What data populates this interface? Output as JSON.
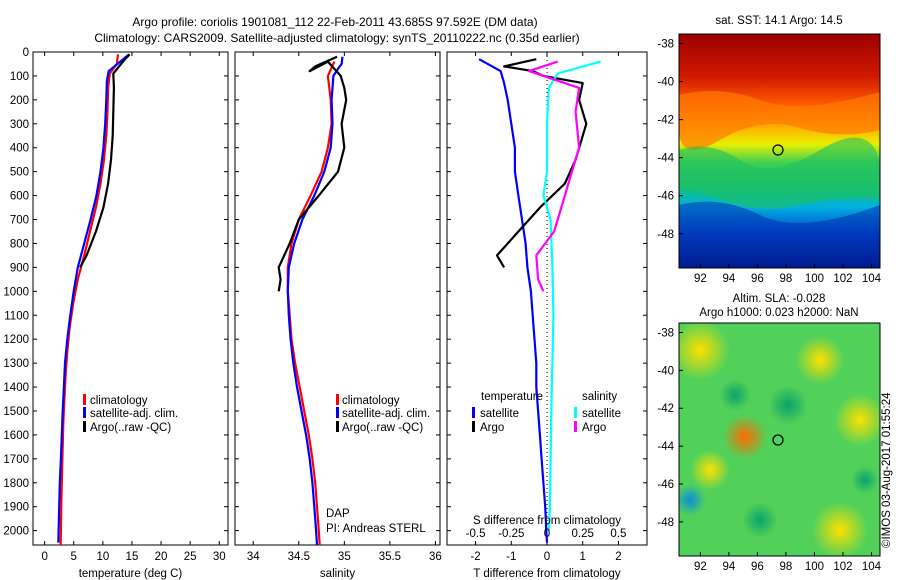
{
  "header": {
    "line1": "Argo profile: coriolis 1901081_112 22-Feb-2011 43.685S 97.592E (DM data)",
    "line2": "Climatology: CARS2009. Satellite-adjusted climatology: synTS_20110222.nc (0.35d earlier)"
  },
  "colors": {
    "climatology": "#ff0000",
    "satellite": "#0000ff",
    "argo": "#000000",
    "sat_salinity": "#00ffff",
    "argo_salinity": "#ff00ff"
  },
  "depth_ticks": [
    "0",
    "100",
    "200",
    "300",
    "400",
    "500",
    "600",
    "700",
    "800",
    "900",
    "1000",
    "1100",
    "1200",
    "1300",
    "1400",
    "1500",
    "1600",
    "1700",
    "1800",
    "1900",
    "2000"
  ],
  "chart_data": [
    {
      "type": "line",
      "xlabel": "temperature (deg C)",
      "ylabel": "",
      "xlim": [
        -2,
        31.5
      ],
      "ylim": [
        2060,
        0
      ],
      "xticks": [
        "0",
        "5",
        "10",
        "15",
        "20",
        "25",
        "30"
      ],
      "legend": {
        "placement": "lower-left",
        "entries": [
          "climatology",
          "satellite-adj. clim.",
          "Argo(..raw -QC)"
        ]
      },
      "series": [
        {
          "name": "climatology",
          "color": "#ff0000",
          "points": [
            [
              12.6,
              10
            ],
            [
              12.4,
              50
            ],
            [
              11.2,
              90
            ],
            [
              10.9,
              150
            ],
            [
              10.8,
              250
            ],
            [
              10.6,
              350
            ],
            [
              10.2,
              450
            ],
            [
              9.6,
              550
            ],
            [
              8.8,
              650
            ],
            [
              7.8,
              750
            ],
            [
              6.8,
              850
            ],
            [
              5.7,
              950
            ],
            [
              4.9,
              1050
            ],
            [
              4.3,
              1150
            ],
            [
              3.9,
              1250
            ],
            [
              3.6,
              1350
            ],
            [
              3.4,
              1450
            ],
            [
              3.2,
              1550
            ],
            [
              3.05,
              1700
            ],
            [
              2.9,
              1850
            ],
            [
              2.8,
              2000
            ],
            [
              2.75,
              2060
            ]
          ]
        },
        {
          "name": "satellite-adj. clim.",
          "color": "#0000ff",
          "points": [
            [
              14.5,
              10
            ],
            [
              13.0,
              40
            ],
            [
              11.0,
              80
            ],
            [
              10.7,
              120
            ],
            [
              10.6,
              200
            ],
            [
              10.4,
              300
            ],
            [
              10.1,
              400
            ],
            [
              9.6,
              500
            ],
            [
              8.9,
              600
            ],
            [
              7.9,
              700
            ],
            [
              6.8,
              800
            ],
            [
              5.7,
              900
            ],
            [
              5.0,
              1000
            ],
            [
              4.4,
              1100
            ],
            [
              3.9,
              1200
            ],
            [
              3.5,
              1300
            ],
            [
              3.3,
              1400
            ],
            [
              3.1,
              1500
            ],
            [
              2.95,
              1600
            ],
            [
              2.8,
              1700
            ],
            [
              2.6,
              1800
            ],
            [
              2.5,
              1900
            ],
            [
              2.4,
              2000
            ],
            [
              2.35,
              2050
            ]
          ]
        },
        {
          "name": "Argo(..raw -QC)",
          "color": "#000000",
          "points": [
            [
              14.6,
              10
            ],
            [
              13.8,
              30
            ],
            [
              12.8,
              60
            ],
            [
              11.8,
              90
            ],
            [
              11.9,
              150
            ],
            [
              11.8,
              250
            ],
            [
              11.7,
              350
            ],
            [
              11.4,
              450
            ],
            [
              10.9,
              550
            ],
            [
              10.1,
              650
            ],
            [
              8.8,
              750
            ],
            [
              7.2,
              850
            ],
            [
              6.1,
              900
            ]
          ]
        }
      ],
      "annotation": []
    },
    {
      "type": "line",
      "xlabel": "salinity",
      "ylabel": "",
      "xlim": [
        33.8,
        36.05
      ],
      "ylim": [
        2060,
        0
      ],
      "xticks": [
        "34",
        "34.5",
        "35",
        "35.5",
        "36"
      ],
      "legend": {
        "placement": "lower-right",
        "entries": [
          "climatology",
          "satellite-adj. clim.",
          "Argo(..raw -QC)"
        ]
      },
      "series": [
        {
          "name": "climatology",
          "color": "#ff0000",
          "points": [
            [
              34.89,
              40
            ],
            [
              34.82,
              100
            ],
            [
              34.85,
              200
            ],
            [
              34.86,
              300
            ],
            [
              34.82,
              400
            ],
            [
              34.75,
              500
            ],
            [
              34.63,
              600
            ],
            [
              34.5,
              700
            ],
            [
              34.42,
              800
            ],
            [
              34.38,
              900
            ],
            [
              34.38,
              1000
            ],
            [
              34.4,
              1100
            ],
            [
              34.42,
              1200
            ],
            [
              34.46,
              1300
            ],
            [
              34.51,
              1400
            ],
            [
              34.56,
              1500
            ],
            [
              34.61,
              1600
            ],
            [
              34.65,
              1700
            ],
            [
              34.68,
              1800
            ],
            [
              34.7,
              1900
            ],
            [
              34.72,
              2000
            ],
            [
              34.73,
              2060
            ]
          ]
        },
        {
          "name": "satellite-adj. clim.",
          "color": "#0000ff",
          "points": [
            [
              34.98,
              20
            ],
            [
              34.97,
              50
            ],
            [
              34.93,
              70
            ],
            [
              34.88,
              100
            ],
            [
              34.86,
              200
            ],
            [
              34.87,
              300
            ],
            [
              34.85,
              400
            ],
            [
              34.78,
              500
            ],
            [
              34.67,
              600
            ],
            [
              34.54,
              700
            ],
            [
              34.45,
              800
            ],
            [
              34.39,
              900
            ],
            [
              34.38,
              1000
            ],
            [
              34.39,
              1100
            ],
            [
              34.41,
              1200
            ],
            [
              34.44,
              1300
            ],
            [
              34.48,
              1400
            ],
            [
              34.53,
              1500
            ],
            [
              34.58,
              1600
            ],
            [
              34.62,
              1700
            ],
            [
              34.65,
              1800
            ],
            [
              34.67,
              1900
            ],
            [
              34.69,
              2000
            ],
            [
              34.7,
              2060
            ]
          ]
        },
        {
          "name": "Argo(..raw -QC)",
          "color": "#000000",
          "points": [
            [
              34.92,
              20
            ],
            [
              34.68,
              60
            ],
            [
              34.62,
              80
            ],
            [
              34.82,
              40
            ],
            [
              34.96,
              100
            ],
            [
              35.0,
              150
            ],
            [
              35.02,
              200
            ],
            [
              34.97,
              300
            ],
            [
              35.0,
              400
            ],
            [
              34.93,
              500
            ],
            [
              34.72,
              600
            ],
            [
              34.5,
              700
            ],
            [
              34.4,
              800
            ],
            [
              34.28,
              900
            ],
            [
              34.3,
              950
            ],
            [
              34.28,
              1000
            ]
          ]
        }
      ],
      "annotation": [
        "DAP",
        "PI: Andreas STERL"
      ]
    },
    {
      "type": "line",
      "xlabel": "T difference from climatology",
      "xlabel_top": "S difference from climatology",
      "xlim": [
        -2.8,
        2.8
      ],
      "ylim": [
        2060,
        0
      ],
      "xticks": [
        "-2",
        "-1",
        "0",
        "1",
        "2"
      ],
      "sticks": [
        "-0.5",
        "-0.25",
        "0",
        "0.25",
        "0.5"
      ],
      "legend": {
        "placement": "center",
        "groups": [
          "temperature",
          "salinity"
        ],
        "entries": [
          "satellite",
          "Argo",
          "satellite",
          "Argo"
        ]
      },
      "series": [
        {
          "name": "satellite",
          "group": "temperature",
          "color": "#0000ff",
          "points": [
            [
              -1.9,
              30
            ],
            [
              -1.3,
              80
            ],
            [
              -1.2,
              130
            ],
            [
              -1.1,
              200
            ],
            [
              -1.0,
              300
            ],
            [
              -0.9,
              400
            ],
            [
              -0.9,
              500
            ],
            [
              -0.8,
              600
            ],
            [
              -0.7,
              700
            ],
            [
              -0.6,
              800
            ],
            [
              -0.55,
              900
            ],
            [
              -0.45,
              1000
            ],
            [
              -0.4,
              1100
            ],
            [
              -0.35,
              1200
            ],
            [
              -0.3,
              1300
            ],
            [
              -0.3,
              1400
            ],
            [
              -0.25,
              1500
            ],
            [
              -0.2,
              1600
            ],
            [
              -0.15,
              1700
            ],
            [
              -0.1,
              1800
            ],
            [
              -0.05,
              1900
            ],
            [
              -0.02,
              2000
            ],
            [
              0,
              2050
            ]
          ]
        },
        {
          "name": "Argo",
          "group": "temperature",
          "color": "#000000",
          "points": [
            [
              -0.3,
              30
            ],
            [
              -1.2,
              60
            ],
            [
              -0.4,
              80
            ],
            [
              -0.1,
              100
            ],
            [
              1.0,
              130
            ],
            [
              0.9,
              200
            ],
            [
              1.1,
              300
            ],
            [
              0.8,
              450
            ],
            [
              0.5,
              550
            ],
            [
              -0.2,
              650
            ],
            [
              -0.8,
              750
            ],
            [
              -1.4,
              850
            ],
            [
              -1.2,
              900
            ]
          ]
        },
        {
          "name": "satellite",
          "group": "salinity",
          "color": "#00ffff",
          "points": [
            [
              1.5,
              40
            ],
            [
              0.3,
              90
            ],
            [
              0.05,
              150
            ],
            [
              0.0,
              300
            ],
            [
              0.0,
              500
            ],
            [
              -0.1,
              600
            ],
            [
              0.1,
              700
            ],
            [
              0.15,
              900
            ],
            [
              0.18,
              1100
            ],
            [
              0.15,
              1300
            ],
            [
              0.12,
              1500
            ],
            [
              0.1,
              1700
            ],
            [
              0.08,
              1900
            ],
            [
              0.05,
              2000
            ]
          ]
        },
        {
          "name": "Argo",
          "group": "salinity",
          "color": "#ff00ff",
          "points": [
            [
              0.3,
              40
            ],
            [
              -0.5,
              80
            ],
            [
              0.9,
              150
            ],
            [
              0.8,
              250
            ],
            [
              0.9,
              400
            ],
            [
              0.6,
              550
            ],
            [
              0.4,
              650
            ],
            [
              0.2,
              750
            ],
            [
              -0.3,
              850
            ],
            [
              -0.25,
              950
            ],
            [
              -0.1,
              1000
            ]
          ]
        }
      ],
      "annotation": []
    }
  ],
  "maps": {
    "sst": {
      "title": "sat. SST: 14.1  Argo: 14.5",
      "lat_ticks": [
        "-38",
        "-40",
        "-42",
        "-44",
        "-46",
        "-48"
      ],
      "lon_ticks": [
        "92",
        "94",
        "96",
        "98",
        "100",
        "102",
        "104"
      ]
    },
    "sla": {
      "title_line1": "Altim. SLA: -0.028",
      "title_line2": "Argo h1000: 0.023  h2000: NaN",
      "lat_ticks": [
        "-38",
        "-40",
        "-42",
        "-44",
        "-46",
        "-48"
      ],
      "lon_ticks": [
        "92",
        "94",
        "96",
        "98",
        "100",
        "102",
        "104"
      ]
    }
  },
  "credit": "©IMOS 03-Aug-2017 01:55:24"
}
